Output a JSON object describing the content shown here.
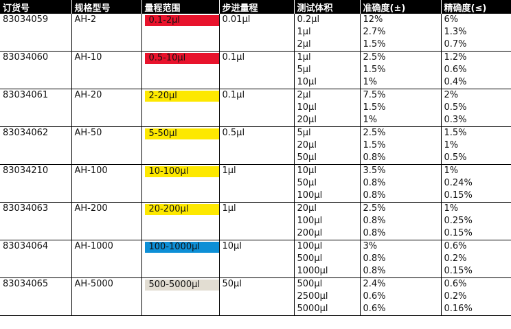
{
  "header": {
    "order_no": "订货号",
    "model": "规格型号",
    "range": "量程范围",
    "increment": "步进量程",
    "test_volume": "测试体积",
    "accuracy": "准确度(±)",
    "precision": "精确度(≤)"
  },
  "products": [
    {
      "order_no": "83034059",
      "model": "AH-2",
      "range": "0.1-2μl",
      "range_color": "#e8132c",
      "increment": "0.01μl",
      "tests": [
        {
          "volume": "0.2μl",
          "accuracy": "12%",
          "precision": "6%"
        },
        {
          "volume": "1μl",
          "accuracy": "2.7%",
          "precision": "1.3%"
        },
        {
          "volume": "2μl",
          "accuracy": "1.5%",
          "precision": "0.7%"
        }
      ]
    },
    {
      "order_no": "83034060",
      "model": "AH-10",
      "range": "0.5-10μl",
      "range_color": "#e8132c",
      "increment": "0.1μl",
      "tests": [
        {
          "volume": "1μl",
          "accuracy": "2.5%",
          "precision": "1.2%"
        },
        {
          "volume": "5μl",
          "accuracy": "1.5%",
          "precision": "0.6%"
        },
        {
          "volume": "10μl",
          "accuracy": "1%",
          "precision": "0.4%"
        }
      ]
    },
    {
      "order_no": "83034061",
      "model": "AH-20",
      "range": "2-20μl",
      "range_color": "#fde800",
      "increment": "0.1μl",
      "tests": [
        {
          "volume": "2μl",
          "accuracy": "7.5%",
          "precision": "2%"
        },
        {
          "volume": "10μl",
          "accuracy": "1.5%",
          "precision": "0.5%"
        },
        {
          "volume": "20μl",
          "accuracy": "1%",
          "precision": "0.3%"
        }
      ]
    },
    {
      "order_no": "83034062",
      "model": "AH-50",
      "range": "5-50μl",
      "range_color": "#fde800",
      "increment": "0.5μl",
      "tests": [
        {
          "volume": "5μl",
          "accuracy": "2.5%",
          "precision": "1.5%"
        },
        {
          "volume": "20μl",
          "accuracy": "1.5%",
          "precision": "1%"
        },
        {
          "volume": "50μl",
          "accuracy": "0.8%",
          "precision": "0.5%"
        }
      ]
    },
    {
      "order_no": "83034210",
      "model": "AH-100",
      "range": "10-100μl",
      "range_color": "#fde800",
      "increment": "1μl",
      "tests": [
        {
          "volume": "10μl",
          "accuracy": "3.5%",
          "precision": "1%"
        },
        {
          "volume": "50μl",
          "accuracy": "0.8%",
          "precision": "0.24%"
        },
        {
          "volume": "100μl",
          "accuracy": "0.8%",
          "precision": "0.15%"
        }
      ]
    },
    {
      "order_no": "83034063",
      "model": "AH-200",
      "range": "20-200μl",
      "range_color": "#fde800",
      "increment": "1μl",
      "tests": [
        {
          "volume": "20μl",
          "accuracy": "2.5%",
          "precision": "1%"
        },
        {
          "volume": "100μl",
          "accuracy": "0.8%",
          "precision": "0.25%"
        },
        {
          "volume": "200μl",
          "accuracy": "0.8%",
          "precision": "0.15%"
        }
      ]
    },
    {
      "order_no": "83034064",
      "model": "AH-1000",
      "range": "100-1000μl",
      "range_color": "#0d8fd6",
      "increment": "10μl",
      "tests": [
        {
          "volume": "100μl",
          "accuracy": "3%",
          "precision": "0.6%"
        },
        {
          "volume": "500μl",
          "accuracy": "0.8%",
          "precision": "0.2%"
        },
        {
          "volume": "1000μl",
          "accuracy": "0.8%",
          "precision": "0.15%"
        }
      ]
    },
    {
      "order_no": "83034065",
      "model": "AH-5000",
      "range": "500-5000μl",
      "range_color": "#e2ddd2",
      "increment": "50μl",
      "tests": [
        {
          "volume": "500μl",
          "accuracy": "2.4%",
          "precision": "0.6%"
        },
        {
          "volume": "2500μl",
          "accuracy": "0.6%",
          "precision": "0.2%"
        },
        {
          "volume": "5000μl",
          "accuracy": "0.6%",
          "precision": "0.16%"
        }
      ]
    }
  ]
}
